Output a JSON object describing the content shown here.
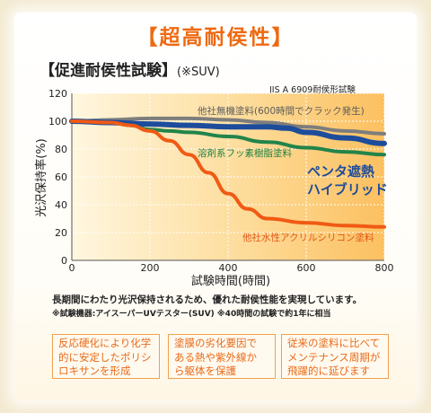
{
  "header": {
    "headline": "【超高耐侯性】",
    "subtitle": "【促進耐侯性試験】",
    "subtitle_note": "(※SUV)",
    "standard": "JIS A 6909耐侯形試験"
  },
  "chart_data": {
    "type": "line",
    "xlabel": "試験時間(時間)",
    "ylabel": "光沢保持率(%)",
    "xlim": [
      0,
      800
    ],
    "ylim": [
      0,
      120
    ],
    "xticks": [
      0,
      200,
      400,
      600,
      800
    ],
    "yticks": [
      0,
      20,
      40,
      60,
      80,
      100,
      120
    ],
    "grid": true,
    "series": [
      {
        "name": "他社無機塗料(600時間でクラック発生)",
        "color": "#7d7d7d",
        "x": [
          0,
          100,
          200,
          300,
          400,
          500,
          600,
          700,
          800
        ],
        "y": [
          100,
          101,
          102,
          102,
          101,
          99,
          96,
          93,
          91
        ]
      },
      {
        "name": "溶剤系フッ素樹脂塗料",
        "color": "#22844a",
        "x": [
          0,
          100,
          150,
          200,
          250,
          300,
          400,
          500,
          600,
          700,
          800
        ],
        "y": [
          100,
          99,
          97,
          94,
          93,
          92,
          89,
          85,
          81,
          78,
          76
        ]
      },
      {
        "name": "ペンタ遮熱ハイブリッド",
        "color": "#1d4c9c",
        "x": [
          0,
          100,
          200,
          300,
          400,
          500,
          550,
          600,
          700,
          800
        ],
        "y": [
          100,
          99,
          98,
          97,
          96,
          96,
          95,
          92,
          88,
          84
        ]
      },
      {
        "name": "他社水性アクリルシリコン塗料",
        "color": "#f05a14",
        "x": [
          0,
          100,
          150,
          200,
          250,
          300,
          350,
          400,
          450,
          500,
          600,
          700,
          800
        ],
        "y": [
          100,
          99,
          97,
          93,
          86,
          76,
          63,
          48,
          37,
          30,
          27,
          25,
          24
        ]
      }
    ]
  },
  "labels": {
    "inorganic": "他社無機塗料(600時間でクラック発生)",
    "fluorine": "溶剤系フッ素樹脂塗料",
    "penta_line1": "ペンタ遮熱",
    "penta_line2": "ハイブリッド",
    "acrylic": "他社水性アクリルシリコン塗料"
  },
  "notes": {
    "line1": "長期間にわたり光沢保持されるため、優れた耐侯性能を実現しています。",
    "line2": "※試験機器:アイスーパーUVテスター(SUV) ※40時間の試験で約1年に相当"
  },
  "features": [
    {
      "line1": "反応硬化により化学",
      "line2": "的に安定したポリシ",
      "line3": "ロキサンを形成"
    },
    {
      "line1": "塗膜の劣化要因で",
      "line2": "ある熱や紫外線か",
      "line3": "ら躯体を保護"
    },
    {
      "line1": "従来の塗料に比べて",
      "line2": "メンテナンス周期が",
      "line3": "飛躍的に延びます"
    }
  ]
}
